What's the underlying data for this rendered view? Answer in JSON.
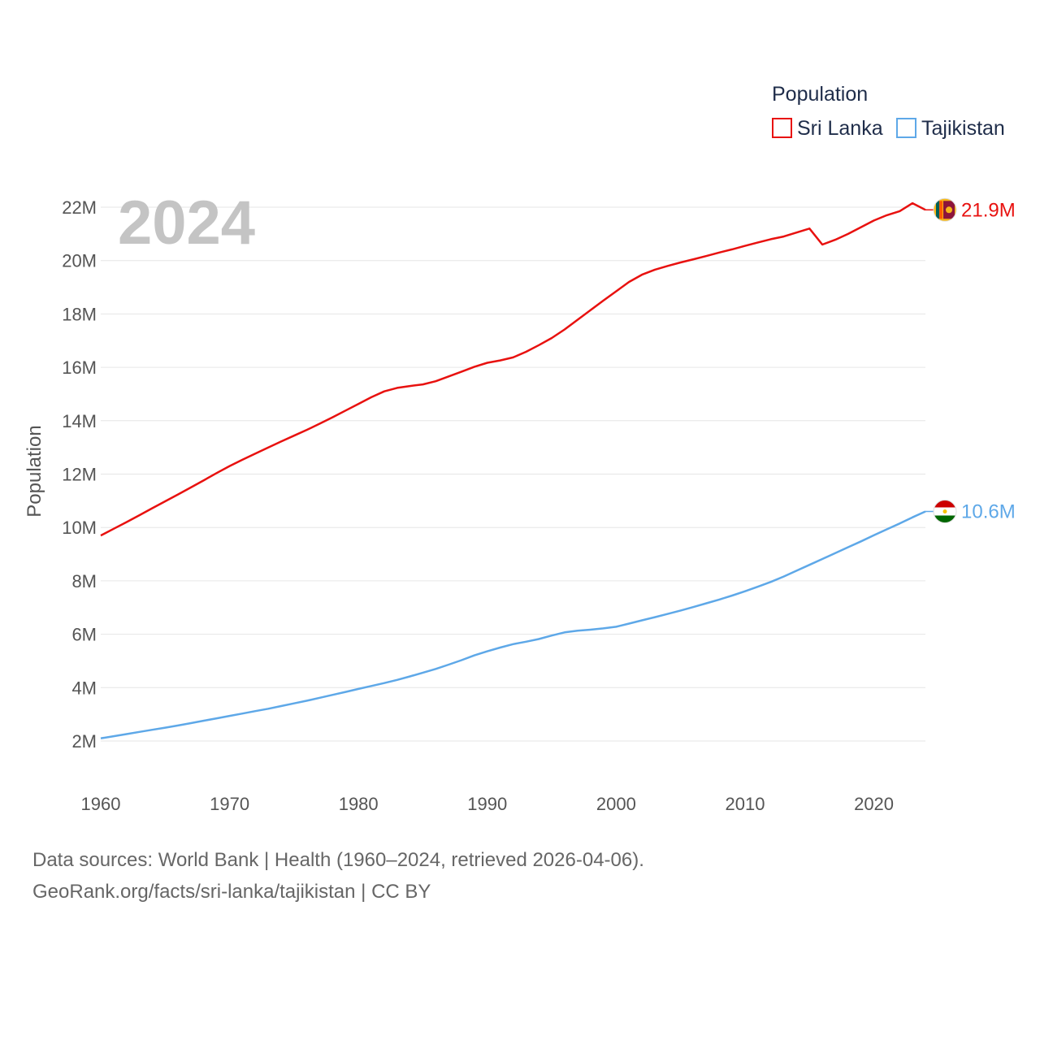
{
  "chart_data": {
    "type": "line",
    "year_label": "2024",
    "legend_title": "Population",
    "ylabel": "Population",
    "xlim": [
      1960,
      2024
    ],
    "ylim": [
      1000000,
      23000000
    ],
    "x_ticks": [
      1960,
      1970,
      1980,
      1990,
      2000,
      2010,
      2020
    ],
    "y_ticks": [
      {
        "value": 2000000,
        "label": "2M"
      },
      {
        "value": 4000000,
        "label": "4M"
      },
      {
        "value": 6000000,
        "label": "6M"
      },
      {
        "value": 8000000,
        "label": "8M"
      },
      {
        "value": 10000000,
        "label": "10M"
      },
      {
        "value": 12000000,
        "label": "12M"
      },
      {
        "value": 14000000,
        "label": "14M"
      },
      {
        "value": 16000000,
        "label": "16M"
      },
      {
        "value": 18000000,
        "label": "18M"
      },
      {
        "value": 20000000,
        "label": "20M"
      },
      {
        "value": 22000000,
        "label": "22M"
      }
    ],
    "x": [
      1960,
      1961,
      1962,
      1963,
      1964,
      1965,
      1966,
      1967,
      1968,
      1969,
      1970,
      1971,
      1972,
      1973,
      1974,
      1975,
      1976,
      1977,
      1978,
      1979,
      1980,
      1981,
      1982,
      1983,
      1984,
      1985,
      1986,
      1987,
      1988,
      1989,
      1990,
      1991,
      1992,
      1993,
      1994,
      1995,
      1996,
      1997,
      1998,
      1999,
      2000,
      2001,
      2002,
      2003,
      2004,
      2005,
      2006,
      2007,
      2008,
      2009,
      2010,
      2011,
      2012,
      2013,
      2014,
      2015,
      2016,
      2017,
      2018,
      2019,
      2020,
      2021,
      2022,
      2023,
      2024
    ],
    "series": [
      {
        "name": "Sri Lanka",
        "color": "#e8110f",
        "end_label": "21.9M",
        "flag_icon": "sri-lanka-flag-icon",
        "values": [
          9700000,
          9950000,
          10200000,
          10460000,
          10720000,
          10980000,
          11240000,
          11500000,
          11770000,
          12040000,
          12300000,
          12540000,
          12770000,
          13000000,
          13220000,
          13440000,
          13660000,
          13890000,
          14130000,
          14380000,
          14630000,
          14880000,
          15100000,
          15230000,
          15300000,
          15360000,
          15480000,
          15660000,
          15840000,
          16020000,
          16170000,
          16260000,
          16370000,
          16580000,
          16830000,
          17100000,
          17420000,
          17780000,
          18140000,
          18500000,
          18850000,
          19200000,
          19470000,
          19660000,
          19800000,
          19930000,
          20050000,
          20170000,
          20300000,
          20420000,
          20550000,
          20680000,
          20800000,
          20900000,
          21050000,
          21200000,
          20600000,
          20780000,
          21000000,
          21250000,
          21500000,
          21700000,
          21850000,
          22150000,
          21900000
        ]
      },
      {
        "name": "Tajikistan",
        "color": "#5ea8e8",
        "end_label": "10.6M",
        "flag_icon": "tajikistan-flag-icon",
        "values": [
          2100000,
          2180000,
          2260000,
          2340000,
          2420000,
          2500000,
          2580000,
          2670000,
          2760000,
          2850000,
          2940000,
          3030000,
          3120000,
          3210000,
          3310000,
          3410000,
          3510000,
          3620000,
          3730000,
          3840000,
          3950000,
          4060000,
          4170000,
          4290000,
          4420000,
          4560000,
          4700000,
          4860000,
          5030000,
          5210000,
          5360000,
          5500000,
          5630000,
          5720000,
          5820000,
          5950000,
          6070000,
          6130000,
          6170000,
          6220000,
          6280000,
          6400000,
          6520000,
          6640000,
          6760000,
          6890000,
          7020000,
          7160000,
          7300000,
          7450000,
          7610000,
          7780000,
          7960000,
          8160000,
          8380000,
          8600000,
          8820000,
          9040000,
          9260000,
          9480000,
          9710000,
          9930000,
          10150000,
          10380000,
          10600000
        ]
      }
    ]
  },
  "footer": {
    "line1": "Data sources: World Bank | Health (1960–2024, retrieved 2026-04-06).",
    "line2": "GeoRank.org/facts/sri-lanka/tajikistan | CC BY"
  }
}
